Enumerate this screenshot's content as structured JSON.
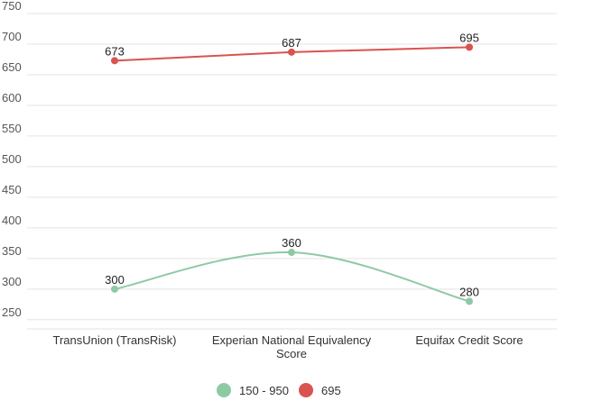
{
  "chart_data": {
    "type": "line",
    "categories": [
      "TransUnion (TransRisk)",
      "Experian National Equivalency Score",
      "Equifax Credit Score"
    ],
    "category_lines": [
      [
        "TransUnion (TransRisk)"
      ],
      [
        "Experian National Equivalency",
        "Score"
      ],
      [
        "Equifax Credit Score"
      ]
    ],
    "series": [
      {
        "name": "150 - 950",
        "values": [
          300,
          360,
          280
        ],
        "color": "#8ec9a6",
        "smooth": true
      },
      {
        "name": "695",
        "values": [
          673,
          687,
          695
        ],
        "color": "#d9534f",
        "smooth": false
      }
    ],
    "yticks": [
      250,
      300,
      350,
      400,
      450,
      500,
      550,
      600,
      650,
      700,
      750
    ],
    "ylim": [
      235,
      750
    ],
    "grid": true,
    "legend_position": "bottom"
  }
}
